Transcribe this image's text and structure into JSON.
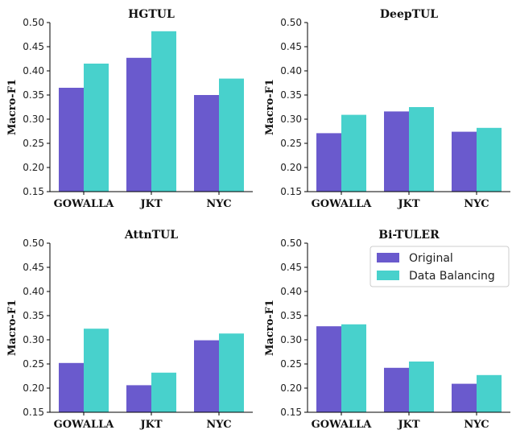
{
  "chart_data": [
    {
      "type": "bar",
      "title": "HGTUL",
      "ylabel": "Macro-F1",
      "xlabel": "",
      "ylim": [
        0.15,
        0.5
      ],
      "yticks": [
        "0.15",
        "0.20",
        "0.25",
        "0.30",
        "0.35",
        "0.40",
        "0.45",
        "0.50"
      ],
      "categories": [
        "GOWALLA",
        "JKT",
        "NYC"
      ],
      "series": [
        {
          "name": "Original",
          "values": [
            0.365,
            0.427,
            0.35
          ]
        },
        {
          "name": "Data Balancing",
          "values": [
            0.415,
            0.482,
            0.384
          ]
        }
      ]
    },
    {
      "type": "bar",
      "title": "DeepTUL",
      "ylabel": "Macro-F1",
      "xlabel": "",
      "ylim": [
        0.15,
        0.5
      ],
      "yticks": [
        "0.15",
        "0.20",
        "0.25",
        "0.30",
        "0.35",
        "0.40",
        "0.45",
        "0.50"
      ],
      "categories": [
        "GOWALLA",
        "JKT",
        "NYC"
      ],
      "series": [
        {
          "name": "Original",
          "values": [
            0.271,
            0.316,
            0.274
          ]
        },
        {
          "name": "Data Balancing",
          "values": [
            0.309,
            0.325,
            0.282
          ]
        }
      ]
    },
    {
      "type": "bar",
      "title": "AttnTUL",
      "ylabel": "Macro-F1",
      "xlabel": "",
      "ylim": [
        0.15,
        0.5
      ],
      "yticks": [
        "0.15",
        "0.20",
        "0.25",
        "0.30",
        "0.35",
        "0.40",
        "0.45",
        "0.50"
      ],
      "categories": [
        "GOWALLA",
        "JKT",
        "NYC"
      ],
      "series": [
        {
          "name": "Original",
          "values": [
            0.252,
            0.206,
            0.299
          ]
        },
        {
          "name": "Data Balancing",
          "values": [
            0.323,
            0.232,
            0.313
          ]
        }
      ]
    },
    {
      "type": "bar",
      "title": "Bi-TULER",
      "ylabel": "Macro-F1",
      "xlabel": "",
      "ylim": [
        0.15,
        0.5
      ],
      "yticks": [
        "0.15",
        "0.20",
        "0.25",
        "0.30",
        "0.35",
        "0.40",
        "0.45",
        "0.50"
      ],
      "categories": [
        "GOWALLA",
        "JKT",
        "NYC"
      ],
      "series": [
        {
          "name": "Original",
          "values": [
            0.328,
            0.242,
            0.209
          ]
        },
        {
          "name": "Data Balancing",
          "values": [
            0.332,
            0.255,
            0.227
          ]
        }
      ],
      "legend": "top-right"
    }
  ],
  "colors": {
    "Original": "#6a5acd",
    "Data Balancing": "#48d1cc",
    "axis": "#000000"
  }
}
